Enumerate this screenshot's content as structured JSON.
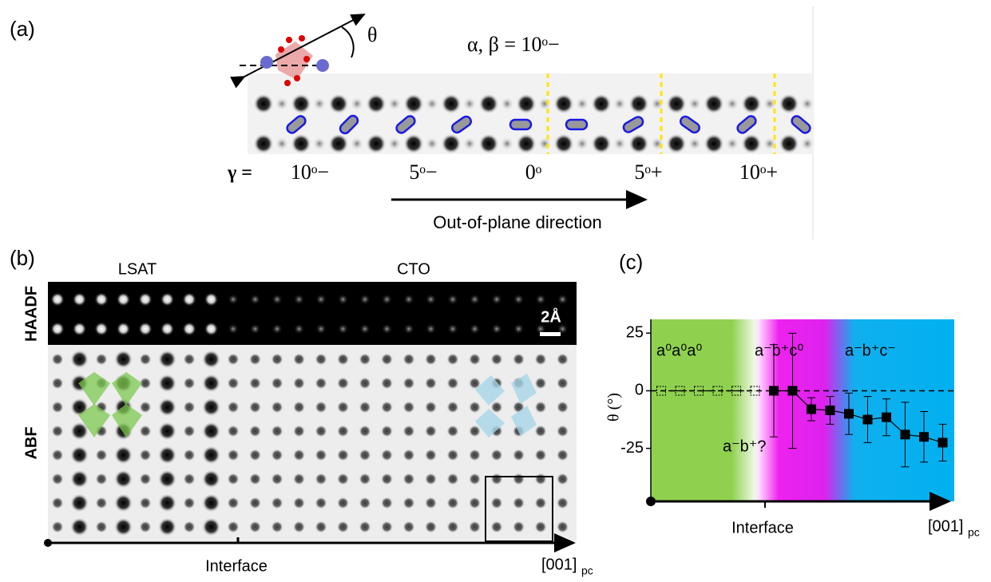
{
  "panel_a": {
    "label": "(a)",
    "theta": "θ",
    "angles": "α, β = 10ᵒ−",
    "gamma_prefix": "γ =",
    "gamma_values": [
      "10ᵒ−",
      "5ᵒ−",
      "0ᵒ",
      "5ᵒ+",
      "10ᵒ+"
    ],
    "arrow_label": "Out-of-plane direction"
  },
  "panel_b": {
    "label": "(b)",
    "lsat": "LSAT",
    "cto": "CTO",
    "haadf": "HAADF",
    "abf": "ABF",
    "scale": "2Å",
    "interface": "Interface",
    "axis": "[001]",
    "axis_sub": "pc"
  },
  "chart_data": {
    "type": "scatter",
    "panel_label": "(c)",
    "y_label": "θ (°)",
    "x_annotation": "Interface",
    "x_label": "[001]",
    "x_label_sub": "pc",
    "categories": [
      null,
      null,
      null,
      null,
      null,
      null,
      null,
      null,
      null,
      null,
      null,
      null,
      null,
      null,
      null,
      null
    ],
    "series": [
      {
        "color": "#000000",
        "marker": "open",
        "line_style": "dashed",
        "values": [
          0,
          0,
          0,
          0,
          0,
          0,
          null,
          null,
          null,
          null,
          null,
          null,
          null,
          null,
          null,
          null
        ]
      },
      {
        "color": "#000000",
        "marker": "filled",
        "line_style": "solid",
        "values": [
          null,
          null,
          null,
          null,
          null,
          null,
          0,
          0,
          -8,
          -8.5,
          -10,
          -12.5,
          -11.5,
          -19,
          -20,
          -22.5
        ],
        "errors": [
          null,
          null,
          null,
          null,
          null,
          null,
          20,
          25,
          5,
          6,
          9,
          10,
          8,
          14,
          11,
          8
        ]
      }
    ],
    "ylim": [
      -48,
      31
    ],
    "yticks": [
      -25,
      0,
      25
    ],
    "reference_line": 0,
    "regions": [
      "a⁰a⁰a⁰",
      "a⁻b⁺c⁰",
      "a⁻b⁺c⁻",
      "a⁻b⁺?"
    ]
  }
}
